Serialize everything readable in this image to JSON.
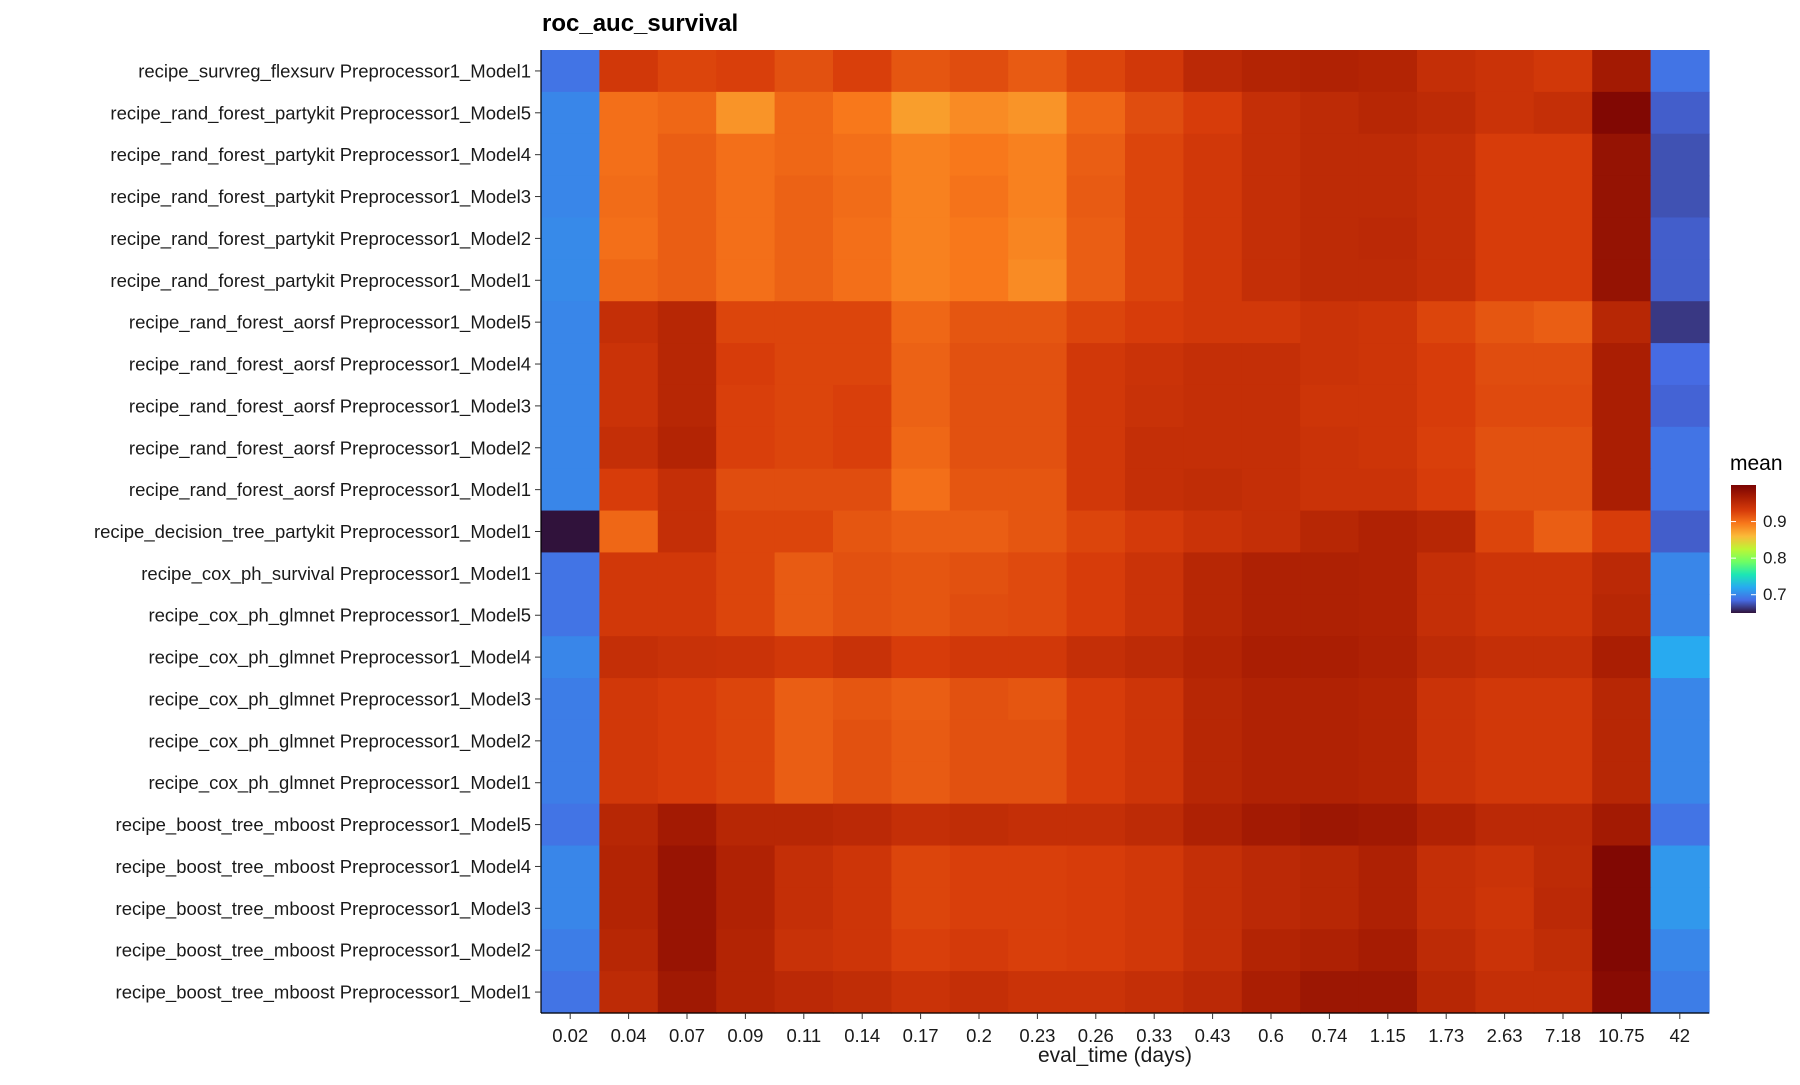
{
  "chart_data": {
    "type": "heatmap",
    "title": "roc_auc_survival",
    "xlabel": "eval_time (days)",
    "ylabel": "",
    "x_categories": [
      "0.02",
      "0.04",
      "0.07",
      "0.09",
      "0.11",
      "0.14",
      "0.17",
      "0.2",
      "0.23",
      "0.26",
      "0.33",
      "0.43",
      "0.6",
      "0.74",
      "1.15",
      "1.73",
      "2.63",
      "7.18",
      "10.75",
      "42"
    ],
    "y_categories": [
      "recipe_survreg_flexsurv Preprocessor1_Model1",
      "recipe_rand_forest_partykit Preprocessor1_Model5",
      "recipe_rand_forest_partykit Preprocessor1_Model4",
      "recipe_rand_forest_partykit Preprocessor1_Model3",
      "recipe_rand_forest_partykit Preprocessor1_Model2",
      "recipe_rand_forest_partykit Preprocessor1_Model1",
      "recipe_rand_forest_aorsf Preprocessor1_Model5",
      "recipe_rand_forest_aorsf Preprocessor1_Model4",
      "recipe_rand_forest_aorsf Preprocessor1_Model3",
      "recipe_rand_forest_aorsf Preprocessor1_Model2",
      "recipe_rand_forest_aorsf Preprocessor1_Model1",
      "recipe_decision_tree_partykit Preprocessor1_Model1",
      "recipe_cox_ph_survival Preprocessor1_Model1",
      "recipe_cox_ph_glmnet Preprocessor1_Model5",
      "recipe_cox_ph_glmnet Preprocessor1_Model4",
      "recipe_cox_ph_glmnet Preprocessor1_Model3",
      "recipe_cox_ph_glmnet Preprocessor1_Model2",
      "recipe_cox_ph_glmnet Preprocessor1_Model1",
      "recipe_boost_tree_mboost Preprocessor1_Model5",
      "recipe_boost_tree_mboost Preprocessor1_Model4",
      "recipe_boost_tree_mboost Preprocessor1_Model3",
      "recipe_boost_tree_mboost Preprocessor1_Model2",
      "recipe_boost_tree_mboost Preprocessor1_Model1"
    ],
    "values": [
      [
        0.69,
        0.935,
        0.925,
        0.928,
        0.918,
        0.928,
        0.915,
        0.92,
        0.912,
        0.925,
        0.935,
        0.952,
        0.958,
        0.96,
        0.958,
        0.945,
        0.94,
        0.935,
        0.97,
        0.69
      ],
      [
        0.7,
        0.9,
        0.905,
        0.88,
        0.905,
        0.895,
        0.875,
        0.885,
        0.88,
        0.905,
        0.92,
        0.93,
        0.945,
        0.95,
        0.955,
        0.95,
        0.94,
        0.945,
        0.995,
        0.68
      ],
      [
        0.7,
        0.9,
        0.91,
        0.9,
        0.905,
        0.9,
        0.89,
        0.895,
        0.89,
        0.91,
        0.925,
        0.935,
        0.945,
        0.95,
        0.95,
        0.945,
        0.93,
        0.93,
        0.98,
        0.675
      ],
      [
        0.7,
        0.902,
        0.91,
        0.9,
        0.908,
        0.902,
        0.89,
        0.898,
        0.89,
        0.912,
        0.925,
        0.935,
        0.945,
        0.95,
        0.95,
        0.945,
        0.93,
        0.93,
        0.98,
        0.675
      ],
      [
        0.702,
        0.9,
        0.91,
        0.9,
        0.908,
        0.9,
        0.89,
        0.895,
        0.888,
        0.91,
        0.925,
        0.935,
        0.945,
        0.95,
        0.952,
        0.945,
        0.93,
        0.93,
        0.98,
        0.68
      ],
      [
        0.702,
        0.905,
        0.91,
        0.9,
        0.908,
        0.9,
        0.89,
        0.895,
        0.885,
        0.91,
        0.925,
        0.935,
        0.945,
        0.95,
        0.95,
        0.945,
        0.93,
        0.93,
        0.98,
        0.68
      ],
      [
        0.7,
        0.945,
        0.955,
        0.925,
        0.925,
        0.925,
        0.905,
        0.915,
        0.915,
        0.925,
        0.93,
        0.935,
        0.935,
        0.94,
        0.938,
        0.925,
        0.915,
        0.91,
        0.955,
        0.665
      ],
      [
        0.7,
        0.94,
        0.955,
        0.93,
        0.925,
        0.925,
        0.908,
        0.918,
        0.918,
        0.935,
        0.94,
        0.945,
        0.945,
        0.94,
        0.938,
        0.93,
        0.92,
        0.92,
        0.965,
        0.685
      ],
      [
        0.7,
        0.94,
        0.955,
        0.928,
        0.925,
        0.928,
        0.908,
        0.918,
        0.918,
        0.935,
        0.942,
        0.945,
        0.945,
        0.938,
        0.938,
        0.93,
        0.922,
        0.922,
        0.965,
        0.682
      ],
      [
        0.7,
        0.945,
        0.958,
        0.928,
        0.925,
        0.928,
        0.905,
        0.918,
        0.918,
        0.935,
        0.945,
        0.945,
        0.945,
        0.94,
        0.938,
        0.928,
        0.918,
        0.918,
        0.965,
        0.69
      ],
      [
        0.7,
        0.93,
        0.945,
        0.92,
        0.92,
        0.92,
        0.9,
        0.915,
        0.915,
        0.935,
        0.945,
        0.948,
        0.945,
        0.94,
        0.94,
        0.93,
        0.918,
        0.918,
        0.965,
        0.69
      ],
      [
        0.65,
        0.905,
        0.945,
        0.925,
        0.925,
        0.915,
        0.91,
        0.91,
        0.915,
        0.925,
        0.932,
        0.94,
        0.945,
        0.955,
        0.96,
        0.955,
        0.925,
        0.91,
        0.93,
        0.68
      ],
      [
        0.69,
        0.935,
        0.935,
        0.925,
        0.912,
        0.918,
        0.915,
        0.918,
        0.922,
        0.93,
        0.94,
        0.955,
        0.962,
        0.962,
        0.96,
        0.945,
        0.938,
        0.938,
        0.952,
        0.7
      ],
      [
        0.69,
        0.935,
        0.935,
        0.925,
        0.912,
        0.918,
        0.915,
        0.92,
        0.922,
        0.93,
        0.94,
        0.955,
        0.962,
        0.962,
        0.96,
        0.945,
        0.938,
        0.938,
        0.955,
        0.7
      ],
      [
        0.7,
        0.945,
        0.942,
        0.94,
        0.935,
        0.942,
        0.93,
        0.935,
        0.935,
        0.945,
        0.95,
        0.958,
        0.965,
        0.965,
        0.962,
        0.95,
        0.945,
        0.945,
        0.965,
        0.72
      ],
      [
        0.695,
        0.935,
        0.93,
        0.925,
        0.91,
        0.915,
        0.91,
        0.918,
        0.915,
        0.93,
        0.938,
        0.955,
        0.96,
        0.96,
        0.958,
        0.94,
        0.935,
        0.935,
        0.955,
        0.7
      ],
      [
        0.695,
        0.935,
        0.93,
        0.925,
        0.91,
        0.918,
        0.912,
        0.918,
        0.918,
        0.93,
        0.938,
        0.955,
        0.96,
        0.96,
        0.958,
        0.94,
        0.935,
        0.935,
        0.955,
        0.7
      ],
      [
        0.695,
        0.935,
        0.93,
        0.925,
        0.91,
        0.918,
        0.912,
        0.918,
        0.918,
        0.93,
        0.938,
        0.955,
        0.96,
        0.96,
        0.958,
        0.94,
        0.935,
        0.935,
        0.955,
        0.7
      ],
      [
        0.69,
        0.955,
        0.97,
        0.955,
        0.955,
        0.952,
        0.945,
        0.948,
        0.945,
        0.945,
        0.95,
        0.962,
        0.97,
        0.975,
        0.972,
        0.96,
        0.952,
        0.952,
        0.97,
        0.69
      ],
      [
        0.7,
        0.958,
        0.978,
        0.96,
        0.945,
        0.938,
        0.925,
        0.928,
        0.928,
        0.93,
        0.935,
        0.945,
        0.952,
        0.955,
        0.962,
        0.945,
        0.94,
        0.95,
        0.995,
        0.71
      ],
      [
        0.7,
        0.958,
        0.978,
        0.96,
        0.945,
        0.938,
        0.925,
        0.928,
        0.928,
        0.93,
        0.935,
        0.945,
        0.952,
        0.955,
        0.962,
        0.945,
        0.938,
        0.952,
        0.995,
        0.71
      ],
      [
        0.695,
        0.955,
        0.978,
        0.958,
        0.942,
        0.938,
        0.928,
        0.932,
        0.928,
        0.93,
        0.935,
        0.945,
        0.958,
        0.962,
        0.968,
        0.95,
        0.94,
        0.948,
        0.995,
        0.7
      ],
      [
        0.69,
        0.95,
        0.972,
        0.958,
        0.952,
        0.948,
        0.94,
        0.945,
        0.94,
        0.94,
        0.945,
        0.952,
        0.965,
        0.975,
        0.975,
        0.955,
        0.945,
        0.945,
        0.99,
        0.695
      ]
    ],
    "legend": {
      "title": "mean",
      "position": "right",
      "ticks": [
        0.9,
        0.8,
        0.7
      ],
      "tick_labels": [
        "0.9",
        "0.8",
        "0.7"
      ]
    },
    "color_scale": {
      "name": "turbo",
      "range": [
        0.65,
        1.0
      ]
    },
    "grid": false
  }
}
